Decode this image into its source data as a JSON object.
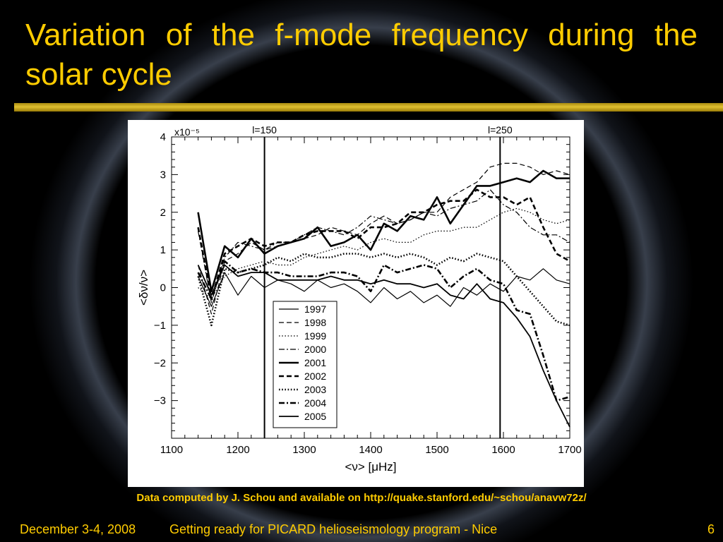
{
  "slide": {
    "title": "Variation of the f-mode frequency during the solar cycle",
    "credit": "Data computed by J. Schou and available on http://quake.stanford.edu/~schou/anavw72z/",
    "footer": {
      "date": "December 3-4, 2008",
      "event": "Getting ready for PICARD helioseismology program - Nice",
      "page": "6"
    },
    "colors": {
      "title": "#ffcc00",
      "background": "#000000",
      "rule": "#d4b020"
    }
  },
  "chart_data": {
    "type": "line",
    "xlabel": "<ν> [μHz]",
    "ylabel": "<δν/ν>",
    "y_multiplier": "x10⁻⁵",
    "xlim": [
      1100,
      1700
    ],
    "ylim": [
      -4,
      4
    ],
    "xticks": [
      1100,
      1200,
      1300,
      1400,
      1500,
      1600,
      1700
    ],
    "yticks": [
      -3,
      -2,
      -1,
      0,
      1,
      2,
      3,
      4
    ],
    "legend_position": "center-bottom",
    "grid": false,
    "vlines": [
      {
        "x": 1240,
        "label": "l=150"
      },
      {
        "x": 1595,
        "label": "l=250"
      }
    ],
    "x": [
      1140,
      1160,
      1180,
      1200,
      1220,
      1240,
      1260,
      1280,
      1300,
      1320,
      1340,
      1360,
      1380,
      1400,
      1420,
      1440,
      1460,
      1480,
      1500,
      1520,
      1540,
      1560,
      1580,
      1600,
      1620,
      1640,
      1660,
      1680,
      1700
    ],
    "series": [
      {
        "name": "1997",
        "style": "solid",
        "width": 1.2,
        "values": [
          0.3,
          -0.5,
          0.4,
          -0.2,
          0.3,
          0.0,
          0.2,
          0.1,
          -0.1,
          0.2,
          0.0,
          0.1,
          -0.1,
          -0.4,
          0.0,
          -0.3,
          -0.1,
          -0.4,
          -0.2,
          -0.5,
          0.0,
          -0.2,
          0.1,
          -0.1,
          0.3,
          0.2,
          0.5,
          0.2,
          0.1
        ]
      },
      {
        "name": "1998",
        "style": "dash",
        "width": 1.2,
        "values": [
          0.6,
          -0.7,
          0.7,
          0.9,
          1.2,
          1.0,
          1.1,
          1.2,
          1.3,
          1.4,
          1.6,
          1.5,
          1.4,
          1.7,
          1.9,
          1.7,
          1.8,
          2.0,
          2.0,
          2.4,
          2.6,
          2.8,
          3.2,
          3.3,
          3.3,
          3.2,
          3.0,
          3.1,
          3.0
        ]
      },
      {
        "name": "1999",
        "style": "dot",
        "width": 1.2,
        "values": [
          0.0,
          -0.3,
          0.3,
          0.5,
          0.6,
          0.7,
          0.6,
          0.6,
          0.8,
          0.9,
          1.0,
          1.1,
          1.0,
          1.2,
          1.3,
          1.2,
          1.2,
          1.4,
          1.5,
          1.5,
          1.6,
          1.6,
          1.8,
          2.0,
          2.1,
          2.0,
          1.8,
          1.7,
          1.8
        ]
      },
      {
        "name": "2000",
        "style": "dashdot",
        "width": 1.2,
        "values": [
          1.5,
          -0.4,
          0.8,
          1.2,
          1.1,
          1.0,
          1.2,
          1.2,
          1.4,
          1.6,
          1.5,
          1.4,
          1.6,
          1.9,
          1.8,
          1.7,
          1.8,
          2.0,
          1.9,
          2.1,
          2.2,
          2.3,
          2.6,
          2.2,
          2.0,
          1.6,
          1.4,
          1.4,
          1.2
        ]
      },
      {
        "name": "2001",
        "style": "solid",
        "width": 2.6,
        "values": [
          2.0,
          -0.1,
          1.1,
          0.8,
          1.3,
          0.9,
          1.1,
          1.2,
          1.3,
          1.6,
          1.1,
          1.2,
          1.4,
          1.0,
          1.7,
          1.5,
          1.9,
          1.8,
          2.4,
          1.7,
          2.2,
          2.7,
          2.7,
          2.8,
          2.9,
          2.8,
          3.1,
          2.9,
          2.9
        ]
      },
      {
        "name": "2002",
        "style": "dash",
        "width": 2.6,
        "values": [
          1.6,
          -0.3,
          0.9,
          1.1,
          1.3,
          1.1,
          1.2,
          1.2,
          1.4,
          1.5,
          1.5,
          1.5,
          1.3,
          1.6,
          1.6,
          1.7,
          2.0,
          2.0,
          2.2,
          2.3,
          2.3,
          2.6,
          2.4,
          2.4,
          2.2,
          2.4,
          1.6,
          0.9,
          0.7
        ]
      },
      {
        "name": "2003",
        "style": "dot",
        "width": 2.6,
        "values": [
          0.3,
          -1.0,
          0.5,
          0.4,
          0.5,
          0.6,
          0.8,
          0.7,
          0.9,
          0.8,
          0.8,
          0.9,
          0.9,
          0.8,
          0.9,
          0.8,
          0.9,
          0.8,
          0.6,
          0.8,
          0.7,
          0.9,
          0.8,
          0.7,
          0.3,
          -0.1,
          -0.5,
          -0.9,
          -1.0
        ]
      },
      {
        "name": "2004",
        "style": "dashdot",
        "width": 2.6,
        "values": [
          0.4,
          -0.3,
          0.7,
          0.4,
          0.5,
          0.4,
          0.4,
          0.3,
          0.3,
          0.3,
          0.4,
          0.4,
          0.3,
          -0.1,
          0.6,
          0.4,
          0.5,
          0.6,
          0.5,
          0.0,
          0.3,
          0.5,
          0.2,
          0.1,
          -0.6,
          -0.7,
          -1.8,
          -3.0,
          -2.9
        ]
      },
      {
        "name": "2005",
        "style": "solid",
        "width": 1.8,
        "values": [
          0.6,
          -0.2,
          0.6,
          0.3,
          0.4,
          0.4,
          0.2,
          0.2,
          0.2,
          0.2,
          0.3,
          0.2,
          0.2,
          0.1,
          0.2,
          0.1,
          0.1,
          0.0,
          0.1,
          -0.2,
          -0.3,
          0.1,
          -0.3,
          -0.4,
          -0.8,
          -1.3,
          -2.2,
          -3.0,
          -3.7
        ]
      }
    ]
  }
}
